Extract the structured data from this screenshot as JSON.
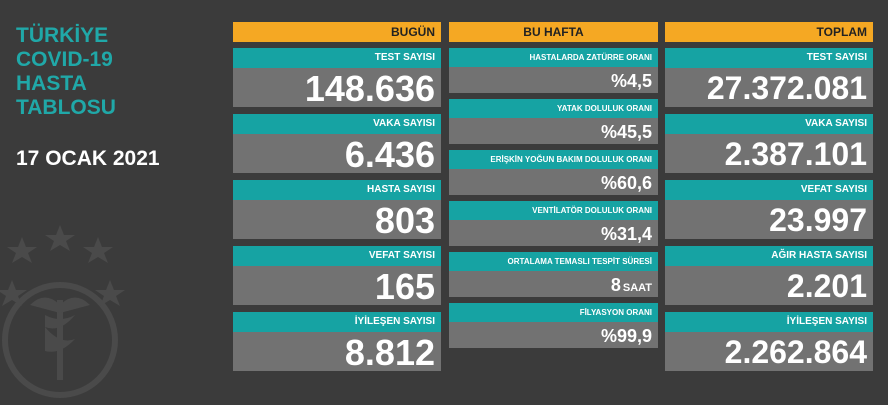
{
  "title": {
    "line1": "TÜRKİYE",
    "line2": "COVID-19",
    "line3": "HASTA",
    "line4": "TABLOSU"
  },
  "date": "17 OCAK 2021",
  "columns": {
    "bugun": {
      "header": "BUGÜN",
      "cards": [
        {
          "label": "TEST SAYISI",
          "value": "148.636"
        },
        {
          "label": "VAKA SAYISI",
          "value": "6.436"
        },
        {
          "label": "HASTA SAYISI",
          "value": "803"
        },
        {
          "label": "VEFAT SAYISI",
          "value": "165"
        },
        {
          "label": "İYİLEŞEN SAYISI",
          "value": "8.812"
        }
      ]
    },
    "bu_hafta": {
      "header": "BU HAFTA",
      "cards": [
        {
          "label": "HASTALARDA ZATÜRRE ORANI",
          "value": "%4,5"
        },
        {
          "label": "YATAK DOLULUK ORANI",
          "value": "%45,5"
        },
        {
          "label": "ERİŞKİN YOĞUN BAKIM DOLULUK ORANI",
          "value": "%60,6"
        },
        {
          "label": "VENTİLATÖR DOLULUK ORANI",
          "value": "%31,4"
        },
        {
          "label": "ORTALAMA TEMASLI TESPİT SÜRESİ",
          "value": "8",
          "unit": "SAAT"
        },
        {
          "label": "FİLYASYON ORANI",
          "value": "%99,9"
        }
      ]
    },
    "toplam": {
      "header": "TOPLAM",
      "cards": [
        {
          "label": "TEST SAYISI",
          "value": "27.372.081"
        },
        {
          "label": "VAKA SAYISI",
          "value": "2.387.101"
        },
        {
          "label": "VEFAT SAYISI",
          "value": "23.997"
        },
        {
          "label": "AĞIR HASTA SAYISI",
          "value": "2.201"
        },
        {
          "label": "İYİLEŞEN SAYISI",
          "value": "2.262.864"
        }
      ]
    }
  },
  "colors": {
    "background": "#3b3b3b",
    "header": "#f5a823",
    "label": "#16a3a3",
    "value": "#727272",
    "title": "#20a8a8"
  },
  "icons": {
    "emblem": "health-ministry-emblem-icon"
  }
}
